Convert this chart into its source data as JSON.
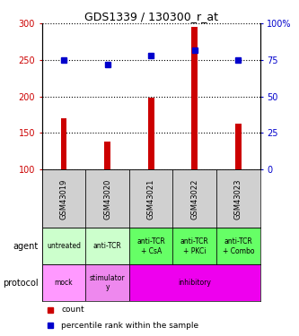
{
  "title": "GDS1339 / 130300_r_at",
  "samples": [
    "GSM43019",
    "GSM43020",
    "GSM43021",
    "GSM43022",
    "GSM43023"
  ],
  "count_values": [
    170,
    138,
    199,
    295,
    163
  ],
  "count_base": 100,
  "percentile_values": [
    75,
    72,
    78,
    82,
    75
  ],
  "ylim_left": [
    100,
    300
  ],
  "ylim_right": [
    0,
    100
  ],
  "yticks_left": [
    100,
    150,
    200,
    250,
    300
  ],
  "yticks_right": [
    0,
    25,
    50,
    75,
    100
  ],
  "agent_labels": [
    "untreated",
    "anti-TCR",
    "anti-TCR\n+ CsA",
    "anti-TCR\n+ PKCi",
    "anti-TCR\n+ Combo"
  ],
  "agent_colors": [
    "#ccffcc",
    "#ccffcc",
    "#66ff66",
    "#66ff66",
    "#66ff66"
  ],
  "proto_spans": [
    [
      0,
      0,
      "mock",
      "#ff99ff"
    ],
    [
      1,
      1,
      "stimulator\ny",
      "#ee88ee"
    ],
    [
      2,
      4,
      "inhibitory",
      "#ee00ee"
    ]
  ],
  "bar_color": "#cc0000",
  "dot_color": "#0000cc",
  "bg_color": "#d0d0d0",
  "legend_red_label": "count",
  "legend_blue_label": "percentile rank within the sample",
  "left_axis_color": "#cc0000",
  "right_axis_color": "#0000cc",
  "bar_width": 0.14
}
